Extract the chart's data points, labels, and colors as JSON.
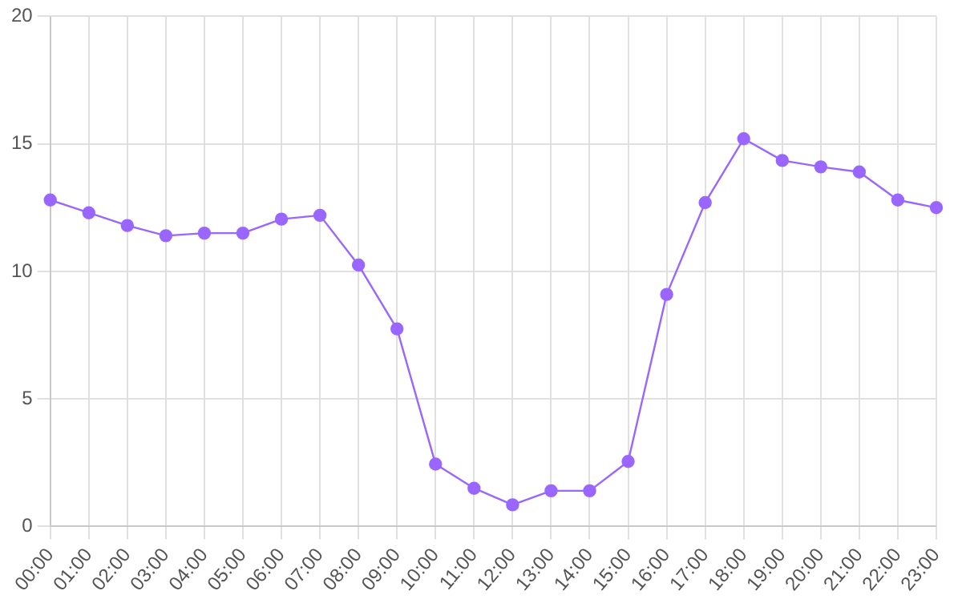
{
  "chart_data": {
    "type": "line",
    "categories": [
      "00:00",
      "01:00",
      "02:00",
      "03:00",
      "04:00",
      "05:00",
      "06:00",
      "07:00",
      "08:00",
      "09:00",
      "10:00",
      "11:00",
      "12:00",
      "13:00",
      "14:00",
      "15:00",
      "16:00",
      "17:00",
      "18:00",
      "19:00",
      "20:00",
      "21:00",
      "22:00",
      "23:00"
    ],
    "series": [
      {
        "color": "#9966ff",
        "values": [
          12.8,
          12.3,
          11.8,
          11.4,
          11.5,
          11.5,
          12.05,
          12.2,
          10.25,
          7.75,
          2.45,
          1.5,
          0.85,
          1.4,
          1.4,
          2.55,
          9.1,
          12.7,
          15.2,
          14.35,
          14.1,
          13.9,
          12.8,
          12.5
        ]
      }
    ],
    "ylim": [
      0,
      20
    ],
    "yticks": [
      0,
      5,
      10,
      15,
      20
    ],
    "grid": true,
    "legend": false,
    "marker": "circle",
    "line_style": "solid"
  }
}
